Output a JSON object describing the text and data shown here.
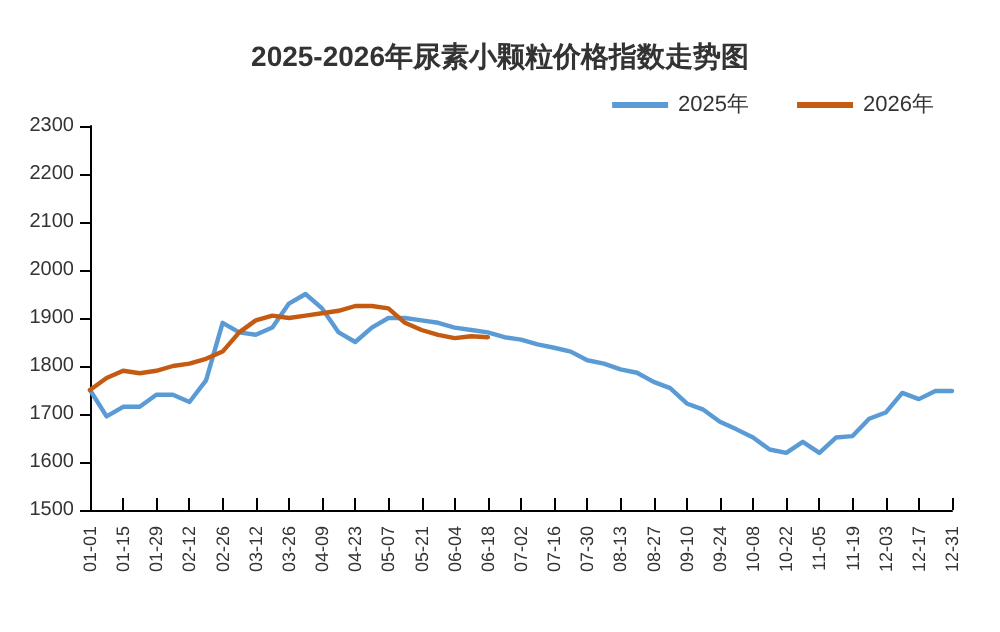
{
  "chart_data": {
    "type": "line",
    "title": "2025-2026年尿素小颗粒价格指数走势图",
    "categories": [
      "01-01",
      null,
      "01-15",
      null,
      "01-29",
      null,
      "02-12",
      null,
      "02-26",
      null,
      "03-12",
      null,
      "03-26",
      null,
      "04-09",
      null,
      "04-23",
      null,
      "05-07",
      null,
      "05-21",
      null,
      "06-04",
      null,
      "06-18",
      null,
      "07-02",
      null,
      "07-16",
      null,
      "07-30",
      null,
      "08-13",
      null,
      "08-27",
      null,
      "09-10",
      null,
      "09-24",
      null,
      "10-08",
      null,
      "10-22",
      null,
      "11-05",
      null,
      "11-19",
      null,
      "12-03",
      null,
      "12-17",
      null,
      "12-31"
    ],
    "series": [
      {
        "name": "2025年",
        "color": "#5b9bd5",
        "values": [
          1750,
          1695,
          1715,
          1715,
          1740,
          1740,
          1725,
          1770,
          1890,
          1870,
          1865,
          1880,
          1930,
          1950,
          1920,
          1870,
          1850,
          1880,
          1900,
          1900,
          1895,
          1890,
          1880,
          1875,
          1870,
          1860,
          1855,
          1845,
          1838,
          1830,
          1812,
          1805,
          1793,
          1786,
          1767,
          1754,
          1722,
          1709,
          1684,
          1668,
          1651,
          1626,
          1619,
          1642,
          1619,
          1651,
          1654,
          1690,
          1703,
          1744,
          1731,
          1748,
          1748
        ]
      },
      {
        "name": "2026年",
        "color": "#c55a11",
        "values": [
          1750,
          1775,
          1790,
          1785,
          1790,
          1800,
          1805,
          1815,
          1830,
          1870,
          1895,
          1905,
          1900,
          1905,
          1910,
          1915,
          1925,
          1925,
          1920,
          1890,
          1875,
          1865,
          1858,
          1862,
          1860,
          null,
          null,
          null,
          null,
          null,
          null,
          null,
          null,
          null,
          null,
          null,
          null,
          null,
          null,
          null,
          null,
          null,
          null,
          null,
          null,
          null,
          null,
          null,
          null,
          null,
          null,
          null,
          null
        ]
      }
    ],
    "ylim": [
      1500,
      2300
    ],
    "yticks": [
      1500,
      1600,
      1700,
      1800,
      1900,
      2000,
      2100,
      2200,
      2300
    ],
    "grid": false,
    "legend": "top right",
    "marker": "none",
    "line_style": "solid"
  }
}
